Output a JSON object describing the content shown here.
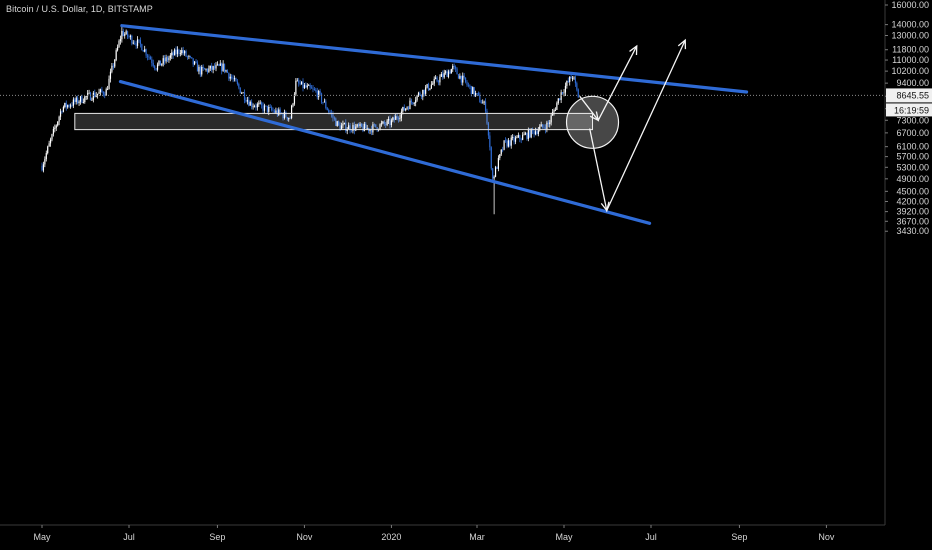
{
  "header": {
    "title": "Bitcoin / U.S. Dollar, 1D, BITSTAMP"
  },
  "chart_data": {
    "type": "candlestick",
    "title": "Bitcoin / U.S. Dollar, 1D, BITSTAMP",
    "symbol": "Bitcoin / U.S. Dollar",
    "interval": "1D",
    "exchange": "BITSTAMP",
    "y_scale": "log",
    "ylim": [
      3300,
      17000
    ],
    "y_ticks": [
      16000,
      14000,
      13000,
      11800,
      11000,
      10200,
      9400,
      8600,
      7900,
      7300,
      6700,
      6100,
      5700,
      5300,
      4900,
      4500,
      4200,
      3920,
      3670,
      3430
    ],
    "y_tick_labels": [
      "16000.00",
      "14000.00",
      "13000.00",
      "11800.00",
      "11000.00",
      "10200.00",
      "9400.00",
      "8600.00",
      "7900.00",
      "7300.00",
      "6700.00",
      "6100.00",
      "5700.00",
      "5300.00",
      "4900.00",
      "4500.00",
      "4200.00",
      "3920.00",
      "3670.00",
      "3430.00"
    ],
    "x_range": [
      "2019-05-01",
      "2020-11-30"
    ],
    "x_ticks": [
      {
        "date": "2019-05-01",
        "label": "May"
      },
      {
        "date": "2019-07-01",
        "label": "Jul"
      },
      {
        "date": "2019-09-01",
        "label": "Sep"
      },
      {
        "date": "2019-11-01",
        "label": "Nov"
      },
      {
        "date": "2020-01-01",
        "label": "2020"
      },
      {
        "date": "2020-03-01",
        "label": "Mar"
      },
      {
        "date": "2020-05-01",
        "label": "May"
      },
      {
        "date": "2020-07-01",
        "label": "Jul"
      },
      {
        "date": "2020-09-01",
        "label": "Sep"
      },
      {
        "date": "2020-11-01",
        "label": "Nov"
      }
    ],
    "current_price": {
      "value": 8645.55,
      "label": "8645.55",
      "countdown": "16:19:59"
    },
    "price_path": [
      {
        "date": "2019-05-01",
        "close": 5350
      },
      {
        "date": "2019-05-15",
        "close": 7950
      },
      {
        "date": "2019-06-01",
        "close": 8550
      },
      {
        "date": "2019-06-15",
        "close": 8900
      },
      {
        "date": "2019-06-26",
        "close": 13300
      },
      {
        "date": "2019-07-10",
        "close": 12100
      },
      {
        "date": "2019-07-20",
        "close": 10500
      },
      {
        "date": "2019-08-06",
        "close": 11800
      },
      {
        "date": "2019-08-20",
        "close": 10200
      },
      {
        "date": "2019-09-05",
        "close": 10500
      },
      {
        "date": "2019-09-24",
        "close": 8200
      },
      {
        "date": "2019-10-22",
        "close": 7450
      },
      {
        "date": "2019-10-26",
        "close": 9400
      },
      {
        "date": "2019-11-10",
        "close": 8800
      },
      {
        "date": "2019-11-25",
        "close": 7000
      },
      {
        "date": "2019-12-17",
        "close": 6900
      },
      {
        "date": "2020-01-01",
        "close": 7200
      },
      {
        "date": "2020-01-20",
        "close": 8700
      },
      {
        "date": "2020-02-13",
        "close": 10400
      },
      {
        "date": "2020-03-01",
        "close": 8600
      },
      {
        "date": "2020-03-07",
        "close": 8000
      },
      {
        "date": "2020-03-12",
        "close": 4900
      },
      {
        "date": "2020-03-20",
        "close": 6200
      },
      {
        "date": "2020-04-01",
        "close": 6500
      },
      {
        "date": "2020-04-20",
        "close": 7100
      },
      {
        "date": "2020-04-29",
        "close": 8800
      },
      {
        "date": "2020-05-07",
        "close": 9900
      },
      {
        "date": "2020-05-11",
        "close": 8600
      }
    ],
    "price_extremes": {
      "high": {
        "date": "2019-06-26",
        "value": 13900
      },
      "low": {
        "date": "2020-03-13",
        "value": 3850
      }
    },
    "trendlines": [
      {
        "name": "upper",
        "color": "#2f6bd6",
        "from": {
          "date": "2019-06-26",
          "value": 13900
        },
        "to": {
          "date": "2020-09-06",
          "value": 8850
        }
      },
      {
        "name": "lower",
        "color": "#2f6bd6",
        "from": {
          "date": "2019-06-25",
          "value": 9500
        },
        "to": {
          "date": "2020-06-30",
          "value": 3620
        }
      }
    ],
    "zones": [
      {
        "name": "support-box",
        "from_date": "2019-05-24",
        "to_date": "2020-05-21",
        "top": 7650,
        "bottom": 6850
      }
    ],
    "circle_marker": {
      "date": "2020-05-21",
      "value": 7200
    },
    "projection_arrows": [
      {
        "name": "bounce-path",
        "points": [
          {
            "date": "2020-05-12",
            "value": 8600
          },
          {
            "date": "2020-05-25",
            "value": 7300
          },
          {
            "date": "2020-06-21",
            "value": 12100
          }
        ]
      },
      {
        "name": "drop-path",
        "points": [
          {
            "date": "2020-05-19",
            "value": 6900
          },
          {
            "date": "2020-05-31",
            "value": 3950
          },
          {
            "date": "2020-07-25",
            "value": 12600
          }
        ]
      }
    ],
    "grid": false
  }
}
